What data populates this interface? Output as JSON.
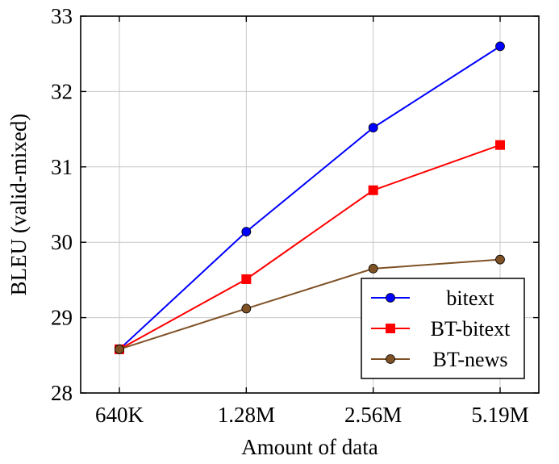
{
  "chart_data": {
    "type": "line",
    "categories": [
      "640K",
      "1.28M",
      "2.56M",
      "5.19M"
    ],
    "xlabel": "Amount of data",
    "ylabel": "BLEU (valid-mixed)",
    "ylim": [
      28,
      33
    ],
    "yticks": [
      28,
      29,
      30,
      31,
      32,
      33
    ],
    "grid": true,
    "legend_position": "bottom-right",
    "series": [
      {
        "name": "bitext",
        "values": [
          28.58,
          30.14,
          31.52,
          32.6
        ],
        "color": "#0000ff",
        "marker": "circle"
      },
      {
        "name": "BT-bitext",
        "values": [
          28.58,
          29.51,
          30.69,
          31.29
        ],
        "color": "#ff0000",
        "marker": "square"
      },
      {
        "name": "BT-news",
        "values": [
          28.58,
          29.12,
          29.65,
          29.77
        ],
        "color": "#7f5226",
        "marker": "circle"
      }
    ]
  }
}
